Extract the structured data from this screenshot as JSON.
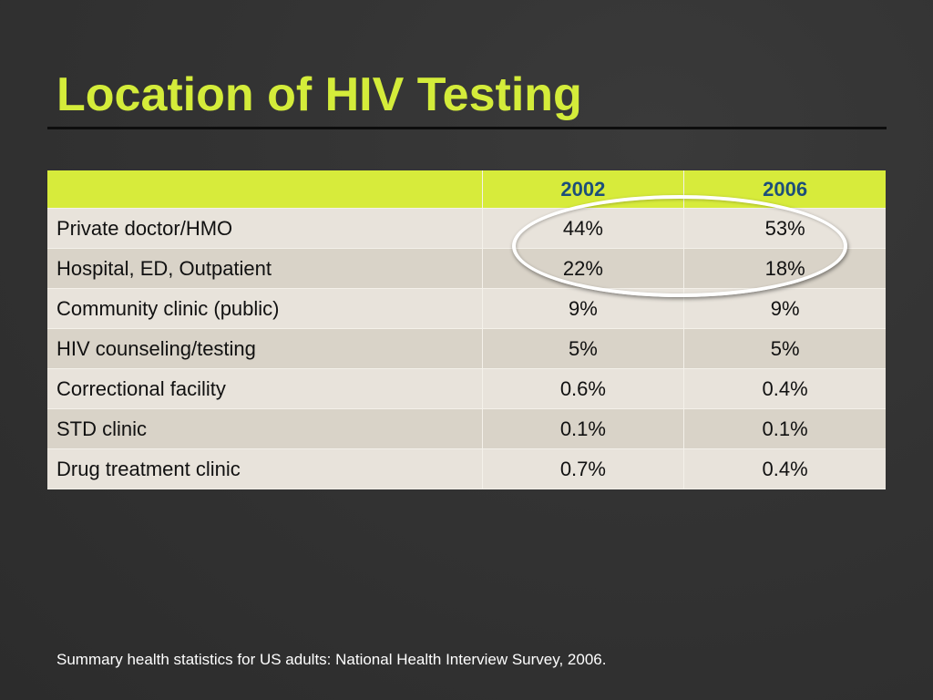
{
  "slide": {
    "title": "Location of HIV Testing",
    "footnote": "Summary health statistics for US adults: National Health Interview Survey, 2006."
  },
  "table": {
    "columns": [
      "",
      "2002",
      "2006"
    ],
    "rows": [
      {
        "label": "Private doctor/HMO",
        "y2002": "44%",
        "y2006": "53%"
      },
      {
        "label": "Hospital, ED, Outpatient",
        "y2002": "22%",
        "y2006": "18%"
      },
      {
        "label": "Community clinic (public)",
        "y2002": "9%",
        "y2006": "9%"
      },
      {
        "label": "HIV counseling/testing",
        "y2002": "5%",
        "y2006": "5%"
      },
      {
        "label": "Correctional facility",
        "y2002": "0.6%",
        "y2006": "0.4%"
      },
      {
        "label": "STD clinic",
        "y2002": "0.1%",
        "y2006": "0.1%"
      },
      {
        "label": "Drug treatment clinic",
        "y2002": "0.7%",
        "y2006": "0.4%"
      }
    ]
  },
  "colors": {
    "title": "#d4ec3a",
    "header_bg": "#d7eb3b",
    "header_text": "#1d4f7a",
    "row_light": "#e8e3db",
    "row_dark": "#d9d3c8",
    "background": "#333333",
    "highlight_ring": "#ffffff"
  }
}
